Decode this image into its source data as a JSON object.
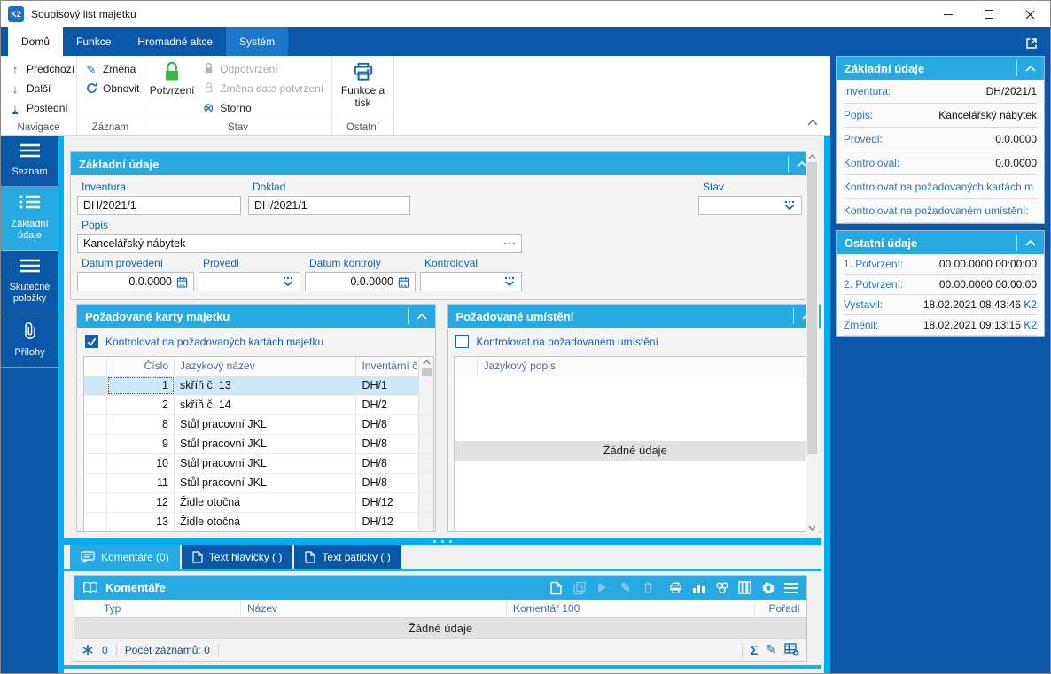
{
  "colors": {
    "dark_blue": "#0A57A7",
    "cyan_header": "#29A9E2",
    "bright_cyan": "#00AEEF",
    "icon_blue": "#1565A8",
    "label_blue": "#0F62AC",
    "green_confirm": "#3DB54A",
    "selected_row": "#CDE9F8"
  },
  "window": {
    "title": "Soupisový list majetku",
    "logo": "K2"
  },
  "ribbon": {
    "tabs": [
      {
        "label": "Domů",
        "state": "active"
      },
      {
        "label": "Funkce",
        "state": "normal"
      },
      {
        "label": "Hromadné akce",
        "state": "normal"
      },
      {
        "label": "Systém",
        "state": "highlight"
      }
    ],
    "navigace": {
      "label": "Navigace",
      "prev": "Předchozí",
      "next": "Další",
      "last": "Poslední"
    },
    "zaznam": {
      "label": "Záznam",
      "change": "Změna",
      "refresh": "Obnovit"
    },
    "stav": {
      "label": "Stav",
      "confirm": "Potvrzení",
      "unconfirm": "Odpotvrzení",
      "change_date": "Změna data potvrzení",
      "cancel": "Storno"
    },
    "ostatni": {
      "label": "Ostatní",
      "print_line1": "Funkce a",
      "print_line2": "tisk"
    }
  },
  "sidebar": {
    "items": [
      {
        "label": "Seznam",
        "icon": "list-icon",
        "active": false
      },
      {
        "label": "Základní údaje",
        "icon": "detail-icon",
        "active": true
      },
      {
        "label": "Skutečné položky",
        "icon": "list-icon",
        "active": false
      },
      {
        "label": "Přílohy",
        "icon": "paperclip-icon",
        "active": false
      }
    ]
  },
  "form": {
    "title": "Základní údaje",
    "inventura": {
      "label": "Inventura",
      "value": "DH/2021/1"
    },
    "doklad": {
      "label": "Doklad",
      "value": "DH/2021/1"
    },
    "stav": {
      "label": "Stav",
      "value": ""
    },
    "popis": {
      "label": "Popis",
      "value": "Kancelářský nábytek"
    },
    "datum_provedeni": {
      "label": "Datum provedení",
      "value": "0.0.0000"
    },
    "provedl": {
      "label": "Provedl",
      "value": ""
    },
    "datum_kontroly": {
      "label": "Datum kontroly",
      "value": "0.0.0000"
    },
    "kontroloval": {
      "label": "Kontroloval",
      "value": ""
    }
  },
  "karty": {
    "title": "Požadované karty majetku",
    "checkbox": {
      "label": "Kontrolovat na požadovaných kartách majetku",
      "checked": true
    },
    "table": {
      "columns": [
        "Číslo",
        "Jazykový název",
        "Inventární č"
      ],
      "selected_index": 0,
      "rows": [
        {
          "cislo": "1",
          "nazev": "skříň č. 13",
          "inv": "DH/1"
        },
        {
          "cislo": "2",
          "nazev": "skříň č. 14",
          "inv": "DH/2"
        },
        {
          "cislo": "8",
          "nazev": "Stůl pracovní JKL",
          "inv": "DH/8"
        },
        {
          "cislo": "9",
          "nazev": "Stůl pracovní JKL",
          "inv": "DH/8"
        },
        {
          "cislo": "10",
          "nazev": "Stůl pracovní JKL",
          "inv": "DH/8"
        },
        {
          "cislo": "11",
          "nazev": "Stůl pracovní JKL",
          "inv": "DH/8"
        },
        {
          "cislo": "12",
          "nazev": "Židle otočná",
          "inv": "DH/12"
        },
        {
          "cislo": "13",
          "nazev": "Židle otočná",
          "inv": "DH/12"
        }
      ]
    }
  },
  "umisteni": {
    "title": "Požadované umístění",
    "checkbox": {
      "label": "Kontrolovat na požadovaném umístění",
      "checked": false
    },
    "table": {
      "columns": [
        "Jazykový popis"
      ],
      "empty_text": "Žádné údaje"
    }
  },
  "bottom_tabs": [
    {
      "label": "Komentáře (0)",
      "active": true
    },
    {
      "label": "Text hlavičky ( )",
      "active": false
    },
    {
      "label": "Text patičky ( )",
      "active": false
    }
  ],
  "komentare": {
    "title": "Komentáře",
    "columns": [
      "Typ",
      "Název",
      "Komentář 100",
      "Pořadí"
    ],
    "empty_text": "Žádné údaje",
    "status": {
      "filter_count": "0",
      "records": "Počet záznamů: 0"
    }
  },
  "right_panel": {
    "zakladni": {
      "title": "Základní údaje",
      "rows": [
        {
          "label": "Inventura:",
          "value": "DH/2021/1"
        },
        {
          "label": "Popis:",
          "value": "Kancelářský nábytek"
        },
        {
          "label": "Provedl:",
          "value": "0.0.0000"
        },
        {
          "label": "Kontroloval:",
          "value": "0.0.0000"
        },
        {
          "label": "Kontrolovat na požadovaných kartách m",
          "value": ""
        },
        {
          "label": "Kontrolovat na požadovaném umístění:",
          "value": ""
        }
      ]
    },
    "ostatni": {
      "title": "Ostatní údaje",
      "rows": [
        {
          "label": "1. Potvrzení:",
          "value": "00.00.0000 00:00:00"
        },
        {
          "label": "2. Potvrzení:",
          "value": "00.00.0000 00:00:00"
        },
        {
          "label": "Vystavil:",
          "value": "18.02.2021 08:43:46",
          "suffix": "K2"
        },
        {
          "label": "Změnil:",
          "value": "18.02.2021 09:13:15",
          "suffix": "K2"
        }
      ]
    }
  }
}
